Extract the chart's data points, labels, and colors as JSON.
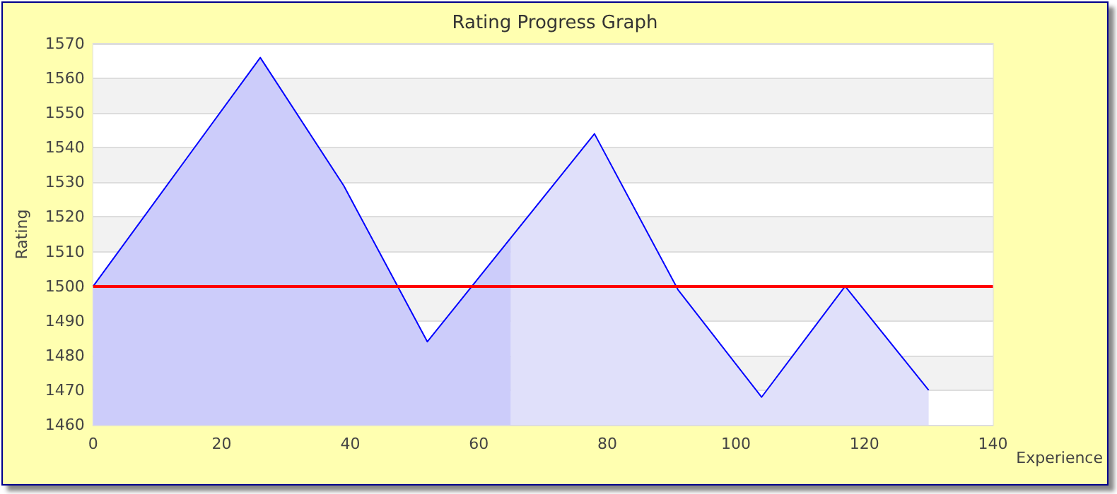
{
  "chart_data": {
    "type": "line",
    "title": "Rating Progress Graph",
    "xlabel": "Experience",
    "ylabel": "Rating",
    "series": [
      {
        "color": "#0000ff",
        "x": [
          0,
          26,
          39,
          52,
          78,
          91,
          104,
          117,
          130
        ],
        "values": [
          1500,
          1566,
          1529,
          1484,
          1544,
          1499,
          1468,
          1500,
          1470
        ]
      },
      {
        "type": "area",
        "color": "#ccccfa",
        "x": [
          0,
          26,
          39,
          52,
          65
        ],
        "values": [
          1500,
          1566,
          1529,
          1484,
          1514
        ]
      },
      {
        "type": "area",
        "color": "#e0e0fa",
        "x": [
          65,
          78,
          91,
          104,
          117,
          130
        ],
        "values": [
          1514,
          1544,
          1499,
          1468,
          1500,
          1470
        ]
      }
    ],
    "xlim": [
      0,
      140
    ],
    "xticks": [
      0,
      20,
      40,
      60,
      80,
      100,
      120,
      140
    ],
    "ylim": [
      1460,
      1570
    ],
    "yticks": [
      1460,
      1470,
      1480,
      1490,
      1500,
      1510,
      1520,
      1530,
      1540,
      1550,
      1560,
      1570
    ],
    "ref_lines": [
      {
        "axis": "y",
        "value": 1500,
        "color": "#ff0000"
      }
    ],
    "grid": "y",
    "marker": "none",
    "line_style": "solid"
  }
}
